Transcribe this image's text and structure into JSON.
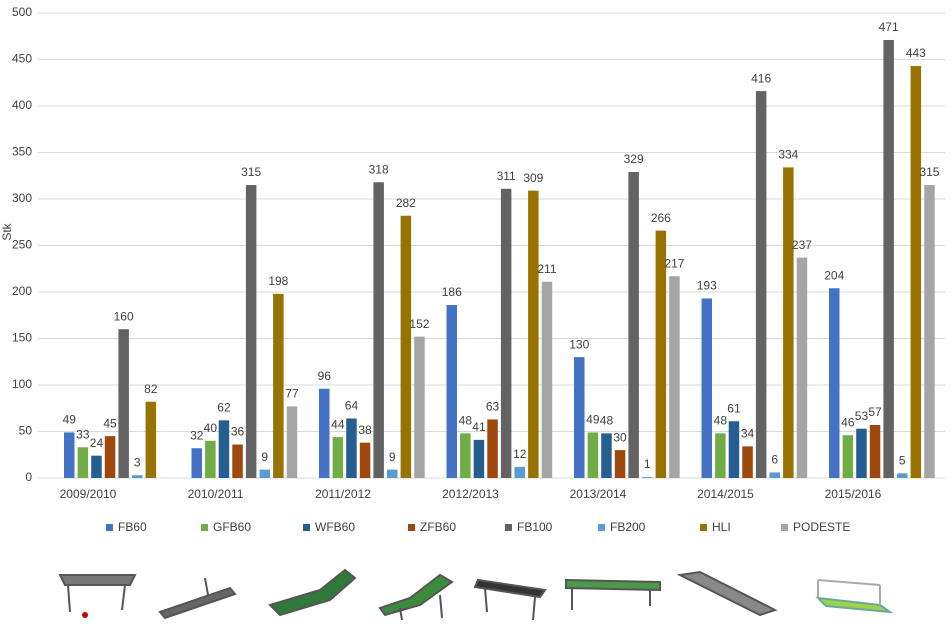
{
  "chart_data": {
    "type": "bar",
    "y_label": "Stk",
    "categories": [
      "2009/2010",
      "2010/2011",
      "2011/2012",
      "2012/2013",
      "2013/2014",
      "2014/2015",
      "2015/2016"
    ],
    "series": [
      {
        "name": "FB60",
        "color": "#4472c4",
        "values": [
          49,
          32,
          96,
          186,
          130,
          193,
          204
        ]
      },
      {
        "name": "GFB60",
        "color": "#70ad47",
        "values": [
          33,
          40,
          44,
          48,
          49,
          48,
          46
        ]
      },
      {
        "name": "WFB60",
        "color": "#255e91",
        "values": [
          24,
          62,
          64,
          41,
          48,
          61,
          53
        ]
      },
      {
        "name": "ZFB60",
        "color": "#9e480e",
        "values": [
          45,
          36,
          38,
          63,
          30,
          34,
          57
        ]
      },
      {
        "name": "FB100",
        "color": "#636363",
        "values": [
          160,
          315,
          318,
          311,
          329,
          416,
          471
        ]
      },
      {
        "name": "FB200",
        "color": "#5b9bd5",
        "values": [
          3,
          9,
          9,
          12,
          1,
          6,
          5
        ]
      },
      {
        "name": "HLI",
        "color": "#997300",
        "values": [
          82,
          198,
          282,
          309,
          266,
          334,
          443
        ]
      },
      {
        "name": "PODESTE",
        "color": "#a5a5a5",
        "values": [
          null,
          77,
          152,
          211,
          217,
          237,
          315
        ]
      }
    ],
    "ylim": [
      0,
      500
    ],
    "yticks": [
      0,
      50,
      100,
      150,
      200,
      250,
      300,
      350,
      400,
      450,
      500
    ],
    "grid": true
  }
}
